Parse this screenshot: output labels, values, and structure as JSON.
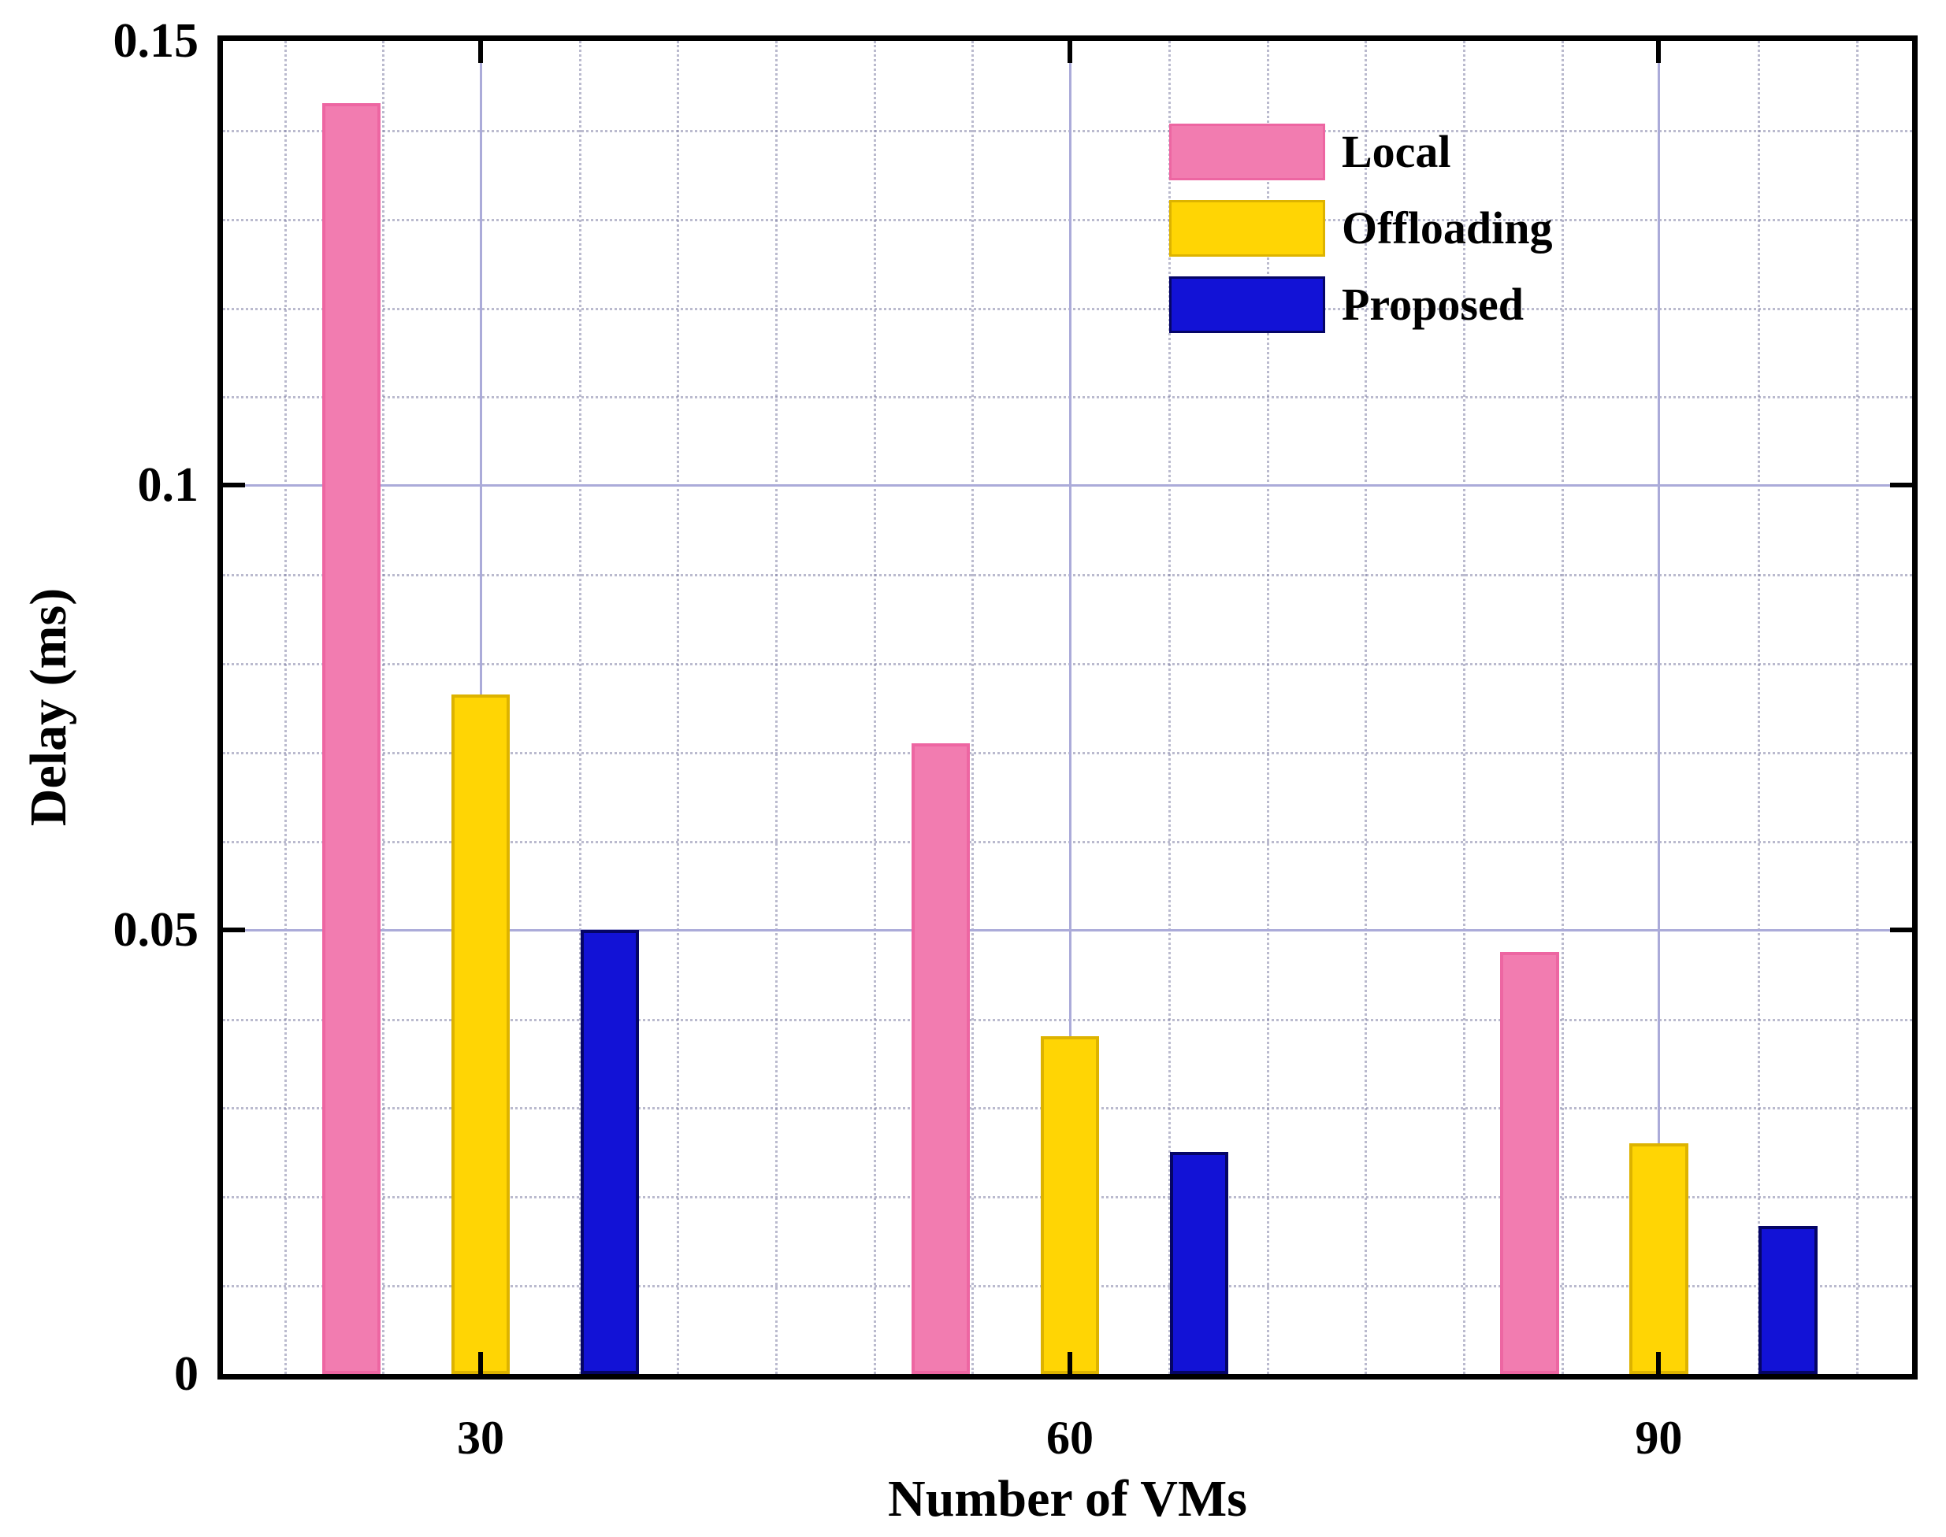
{
  "chart_data": {
    "type": "bar",
    "title": "",
    "xlabel": "Number of VMs",
    "ylabel": "Delay (ms)",
    "categories": [
      "30",
      "60",
      "90"
    ],
    "series": [
      {
        "name": "Local",
        "color": "#F27CB0",
        "edge_color": "#ED66A2",
        "values": [
          0.143,
          0.071,
          0.0475
        ]
      },
      {
        "name": "Offloading",
        "color": "#FFD504",
        "edge_color": "#DDB300",
        "values": [
          0.0765,
          0.038,
          0.026
        ]
      },
      {
        "name": "Proposed",
        "color": "#1212D6",
        "edge_color": "#050566",
        "values": [
          0.05,
          0.025,
          0.0167
        ]
      }
    ],
    "ylim": [
      0,
      0.15
    ],
    "yticks": [
      {
        "value": 0,
        "label": "0"
      },
      {
        "value": 0.05,
        "label": "0.05"
      },
      {
        "value": 0.1,
        "label": "0.1"
      },
      {
        "value": 0.15,
        "label": "0.15"
      }
    ],
    "y_minor_step": 0.01,
    "grid": {
      "major": true,
      "minor": true,
      "major_color": "#ABABD9"
    },
    "legend_position": "upper-right-inside",
    "legend_frame": false,
    "axis_color": "#000000",
    "background_color": "#ffffff"
  }
}
